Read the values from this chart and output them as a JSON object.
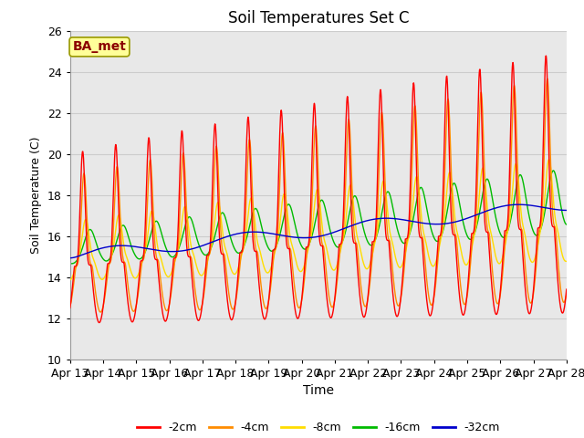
{
  "title": "Soil Temperatures Set C",
  "xlabel": "Time",
  "ylabel": "Soil Temperature (C)",
  "ylim": [
    10,
    26
  ],
  "annotation": "BA_met",
  "annotation_color": "#8B0000",
  "annotation_bg": "#FFFF99",
  "annotation_border": "#999900",
  "colors": {
    "-2cm": "#FF0000",
    "-4cm": "#FF8C00",
    "-8cm": "#FFDD00",
    "-16cm": "#00BB00",
    "-32cm": "#0000CC"
  },
  "legend_labels": [
    "-2cm",
    "-4cm",
    "-8cm",
    "-16cm",
    "-32cm"
  ],
  "grid_color": "#CCCCCC",
  "bg_color": "#E8E8E8",
  "tick_labels": [
    "Apr 13",
    "Apr 14",
    "Apr 15",
    "Apr 16",
    "Apr 17",
    "Apr 18",
    "Apr 19",
    "Apr 20",
    "Apr 21",
    "Apr 22",
    "Apr 23",
    "Apr 24",
    "Apr 25",
    "Apr 26",
    "Apr 27",
    "Apr 28"
  ],
  "linewidth": 1.0,
  "figsize": [
    6.4,
    4.8
  ],
  "dpi": 100
}
